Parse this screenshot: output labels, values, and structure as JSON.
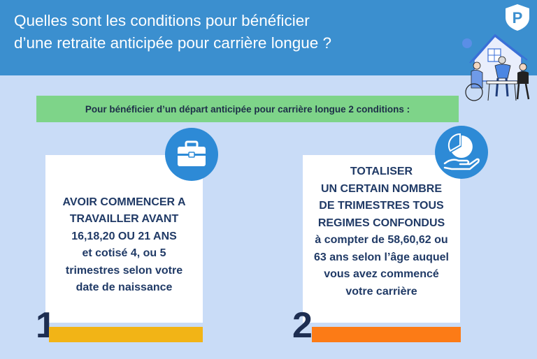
{
  "header": {
    "title_line1": "Quelles sont les conditions pour bénéficier",
    "title_line2": "d’une retraite anticipée pour carrière longue ?",
    "logo_letter": "P",
    "color": "#3b8fcf"
  },
  "banner": {
    "text": "Pour bénéficier d’un départ anticipée pour carrière longue 2 conditions :",
    "color": "#7ed489"
  },
  "conditions": [
    {
      "number": "1",
      "icon": "briefcase-icon",
      "bar_color": "#f2b416",
      "lines": [
        "AVOIR COMMENCER A",
        "TRAVAILLER AVANT",
        "16,18,20 OU 21 ANS",
        "et cotisé 4, ou 5",
        "trimestres selon votre",
        "date de naissance"
      ]
    },
    {
      "number": "2",
      "icon": "hand-pie-chart-icon",
      "bar_color": "#fc7b16",
      "lines": [
        "TOTALISER",
        "UN CERTAIN NOMBRE",
        "DE TRIMESTRES TOUS",
        "REGIMES CONFONDUS",
        "à compter de 58,60,62 ou",
        "63 ans selon l’âge auquel",
        "vous avez commencé",
        "votre carrière"
      ]
    }
  ],
  "background": "#c9dcf7"
}
